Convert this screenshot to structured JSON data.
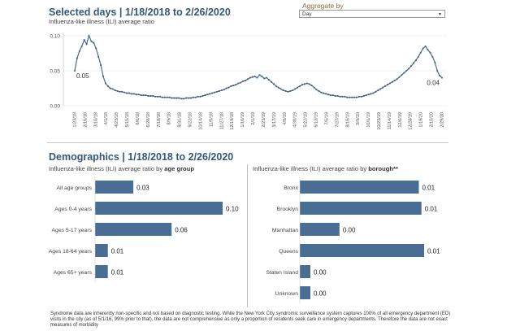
{
  "header": {
    "title": "Selected days | 1/18/2018 to 2/26/2020",
    "subtitle": "Influenza-like illness (ILI) average ratio",
    "aggregate_label": "Aggregate by",
    "aggregate_value": "Day"
  },
  "demographics": {
    "title": "Demographics | 1/18/2018 to 2/26/2020",
    "age_sub_prefix": "Influenza-like illness (ILI) average ratio by ",
    "age_sub_key": "age group",
    "borough_sub_prefix": "Influenza-like illness (ILI) average ratio by ",
    "borough_sub_key": "borough**"
  },
  "footnote": "Syndrome data are inherently non-specific and not based on diagnostic testing. While the New York City syndromic surveillance system captures 100% of all emergency department (ED) visits in the city (as of 5/1/16, 99% prior to that), the data are not comprehensive as only a proportion of residents seek care in emergency departments. Therefore the data are not exact measures of morbidity",
  "chart_data": [
    {
      "type": "line",
      "title": "Influenza-like illness (ILI) average ratio",
      "ylim": [
        0,
        0.1
      ],
      "yticks": [
        "0.10",
        "0.05",
        "0.00"
      ],
      "xticks": [
        "1/23/18",
        "2/16/18",
        "3/10/18",
        "4/1/18",
        "4/23/18",
        "5/15/18",
        "6/6/18",
        "6/28/18",
        "7/18/18",
        "8/9/18",
        "8/31/18",
        "9/22/18",
        "10/14/18",
        "11/5/18",
        "11/27/18",
        "12/19/18",
        "1/10/19",
        "2/1/19",
        "2/23/19",
        "3/17/19",
        "4/8/19",
        "4/30/19",
        "5/22/19",
        "6/13/19",
        "7/5/19",
        "7/27/19",
        "8/18/19",
        "9/9/19",
        "10/1/19",
        "10/23/19",
        "11/14/19",
        "12/6/19",
        "12/28/19",
        "1/19/20",
        "2/10/20",
        "2/29/20"
      ],
      "series": [
        {
          "name": "ILI average ratio",
          "values": [
            0.05,
            0.068,
            0.078,
            0.085,
            0.094,
            0.088,
            0.1,
            0.092,
            0.09,
            0.082,
            0.07,
            0.058,
            0.042,
            0.032,
            0.028,
            0.025,
            0.024,
            0.022,
            0.021,
            0.02,
            0.02,
            0.019,
            0.018,
            0.018,
            0.017,
            0.017,
            0.016,
            0.016,
            0.015,
            0.015,
            0.015,
            0.014,
            0.014,
            0.014,
            0.013,
            0.013,
            0.013,
            0.012,
            0.012,
            0.012,
            0.012,
            0.011,
            0.011,
            0.011,
            0.011,
            0.01,
            0.01,
            0.011,
            0.011,
            0.011,
            0.012,
            0.012,
            0.013,
            0.013,
            0.014,
            0.015,
            0.016,
            0.017,
            0.018,
            0.019,
            0.02,
            0.021,
            0.022,
            0.023,
            0.025,
            0.026,
            0.028,
            0.029,
            0.03,
            0.032,
            0.033,
            0.035,
            0.036,
            0.038,
            0.04,
            0.041,
            0.042,
            0.04,
            0.044,
            0.042,
            0.039,
            0.04,
            0.037,
            0.034,
            0.031,
            0.028,
            0.026,
            0.024,
            0.022,
            0.021,
            0.02,
            0.021,
            0.022,
            0.024,
            0.026,
            0.028,
            0.03,
            0.031,
            0.032,
            0.031,
            0.029,
            0.026,
            0.023,
            0.021,
            0.019,
            0.018,
            0.017,
            0.016,
            0.015,
            0.015,
            0.014,
            0.014,
            0.013,
            0.013,
            0.013,
            0.012,
            0.012,
            0.012,
            0.012,
            0.012,
            0.013,
            0.013,
            0.014,
            0.015,
            0.016,
            0.017,
            0.018,
            0.02,
            0.022,
            0.024,
            0.026,
            0.028,
            0.03,
            0.032,
            0.034,
            0.036,
            0.038,
            0.041,
            0.044,
            0.047,
            0.05,
            0.053,
            0.057,
            0.061,
            0.065,
            0.07,
            0.076,
            0.082,
            0.085,
            0.08,
            0.076,
            0.07,
            0.062,
            0.05,
            0.043,
            0.04
          ]
        }
      ],
      "point_labels": [
        {
          "label": "0.05",
          "index": 0
        },
        {
          "label": "0.04",
          "index": 155
        }
      ]
    },
    {
      "type": "bar",
      "title": "Influenza-like illness (ILI) average ratio by age group",
      "categories": [
        "All age groups",
        "Ages 0-4 years",
        "Ages 5-17 years",
        "Ages 18-64 years",
        "Ages 65+ years"
      ],
      "values": [
        0.03,
        0.1,
        0.06,
        0.01,
        0.01
      ],
      "labels": [
        "0.03",
        "0.10",
        "0.06",
        "0.01",
        "0.01"
      ],
      "color": "#4a6d94"
    },
    {
      "type": "bar",
      "title": "Influenza-like illness (ILI) average ratio by borough**",
      "categories": [
        "Bronx",
        "Brooklyn",
        "Manhattan",
        "Queens",
        "Staten Island",
        "Unknown"
      ],
      "values": [
        0.0135,
        0.0138,
        0.0045,
        0.0141,
        0.0012,
        0.0012
      ],
      "labels": [
        "0.01",
        "0.01",
        "0.00",
        "0.01",
        "0.00",
        "0.00"
      ],
      "color": "#4a6d94"
    }
  ]
}
